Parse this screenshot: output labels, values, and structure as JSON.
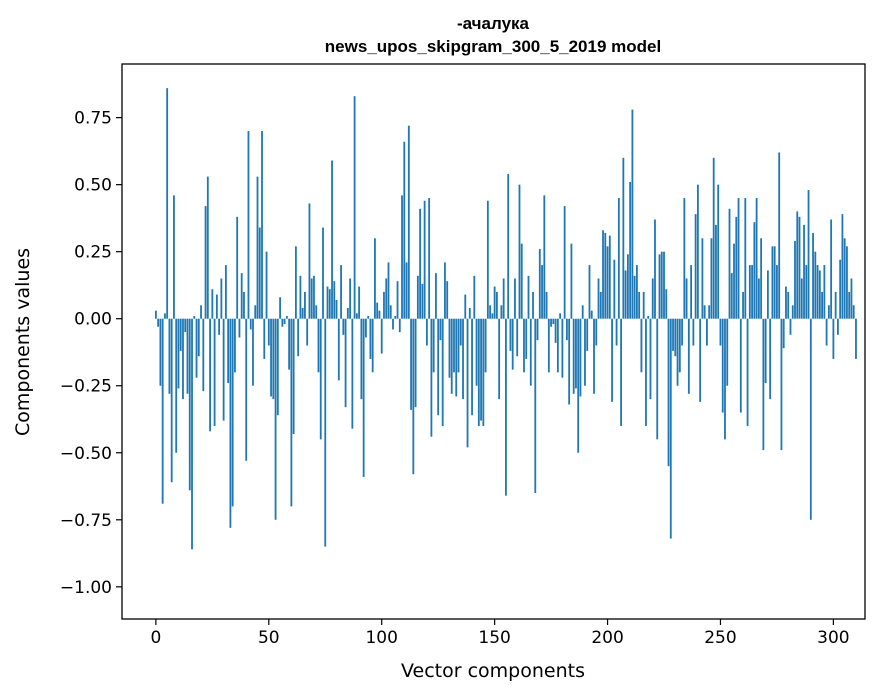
{
  "chart_data": {
    "type": "bar",
    "title": "-ачалука",
    "subtitle": "news_upos_skipgram_300_5_2019 model",
    "xlabel": "Vector components",
    "ylabel": "Components values",
    "xlim": [
      -15,
      314
    ],
    "ylim": [
      -1.12,
      0.95
    ],
    "xticks": [
      0,
      50,
      100,
      150,
      200,
      250,
      300
    ],
    "xtick_labels": [
      "0",
      "50",
      "100",
      "150",
      "200",
      "250",
      "300"
    ],
    "yticks": [
      0.75,
      0.5,
      0.25,
      0.0,
      -0.25,
      -0.5,
      -0.75,
      -1.0
    ],
    "ytick_labels": [
      "0.75",
      "0.50",
      "0.25",
      "0.00",
      "−0.25",
      "−0.50",
      "−0.75",
      "−1.00"
    ],
    "bar_color": "#1f77b4",
    "grid": false,
    "legend": "none",
    "values": [
      0.03,
      -0.03,
      -0.25,
      -0.69,
      0.02,
      0.86,
      -0.28,
      -0.61,
      0.46,
      -0.5,
      -0.26,
      -0.12,
      -0.3,
      -0.05,
      -0.28,
      -0.64,
      -0.86,
      0.01,
      -0.22,
      -0.14,
      0.05,
      -0.27,
      0.42,
      0.53,
      -0.42,
      0.11,
      -0.4,
      0.09,
      -0.06,
      0.15,
      -0.38,
      0.2,
      -0.24,
      -0.78,
      -0.7,
      -0.2,
      0.38,
      -0.07,
      0.17,
      0.1,
      -0.53,
      0.7,
      -0.04,
      -0.25,
      0.05,
      0.53,
      0.34,
      0.7,
      -0.15,
      0.25,
      -0.1,
      -0.29,
      -0.3,
      -0.75,
      -0.36,
      0.08,
      -0.03,
      -0.02,
      0.01,
      -0.19,
      -0.7,
      -0.43,
      0.27,
      -0.14,
      0.16,
      0.04,
      0.1,
      -0.1,
      0.43,
      0.15,
      0.16,
      0.05,
      -0.2,
      -0.45,
      0.34,
      -0.85,
      0.12,
      0.11,
      0.59,
      0.14,
      0.07,
      -0.23,
      0.2,
      -0.06,
      -0.33,
      0.04,
      0.15,
      -0.41,
      0.83,
      0.02,
      0.12,
      -0.3,
      -0.59,
      -0.07,
      0.01,
      -0.15,
      -0.2,
      0.3,
      0.06,
      0.03,
      -0.13,
      0.1,
      0.15,
      0.21,
      0.05,
      -0.04,
      0.01,
      0.14,
      -0.05,
      0.46,
      0.66,
      0.21,
      0.72,
      -0.34,
      -0.58,
      -0.33,
      0.16,
      0.41,
      0.13,
      0.44,
      -0.1,
      0.45,
      -0.44,
      -0.2,
      0.17,
      -0.36,
      -0.08,
      -0.4,
      0.21,
      0.14,
      -0.22,
      -0.28,
      -0.2,
      -0.29,
      -0.2,
      -0.1,
      -0.3,
      0.09,
      -0.48,
      0.04,
      -0.36,
      0.16,
      -0.25,
      -0.4,
      -0.38,
      -0.4,
      -0.2,
      0.44,
      0.05,
      0.02,
      0.12,
      0.1,
      -0.3,
      0.05,
      0.15,
      -0.66,
      0.54,
      -0.12,
      -0.19,
      0.15,
      -0.14,
      0.5,
      0.28,
      -0.2,
      -0.15,
      0.16,
      -0.25,
      0.1,
      -0.65,
      -0.08,
      0.26,
      0.2,
      0.46,
      0.1,
      -0.2,
      -0.03,
      -0.02,
      -0.09,
      -0.2,
      0.02,
      -0.22,
      0.42,
      -0.08,
      -0.32,
      0.28,
      -0.28,
      -0.26,
      -0.5,
      -0.29,
      0.05,
      -0.25,
      -0.12,
      0.2,
      0.03,
      -0.28,
      -0.1,
      0.15,
      0.1,
      0.33,
      0.32,
      0.27,
      0.31,
      -0.31,
      0.22,
      -0.1,
      0.45,
      -0.4,
      0.6,
      0.18,
      0.24,
      0.51,
      0.78,
      0.16,
      0.2,
      0.1,
      -0.2,
      0.1,
      -0.4,
      0.01,
      -0.3,
      0.15,
      0.37,
      -0.45,
      0.24,
      0.25,
      0.25,
      0.11,
      -0.55,
      -0.82,
      -0.12,
      -0.14,
      -0.25,
      -0.2,
      -0.1,
      0.45,
      0.15,
      -0.28,
      0.2,
      -0.1,
      0.39,
      0.5,
      -0.31,
      0.3,
      0.05,
      -0.1,
      0.05,
      0.3,
      0.6,
      0.35,
      0.5,
      -0.1,
      -0.35,
      -0.45,
      -0.25,
      0.41,
      0.17,
      0.28,
      0.38,
      0.45,
      -0.35,
      0.1,
      0.45,
      -0.4,
      0.2,
      0.2,
      0.36,
      0.45,
      0.15,
      0.3,
      -0.49,
      -0.24,
      0.18,
      -0.3,
      0.27,
      0.27,
      0.2,
      0.62,
      -0.49,
      -0.11,
      0.12,
      0.1,
      -0.06,
      0.05,
      0.29,
      0.4,
      0.38,
      0.15,
      0.35,
      0.2,
      0.48,
      -0.75,
      0.32,
      0.25,
      0.2,
      0.18,
      0.1,
      0.2,
      -0.1,
      0.05,
      0.37,
      -0.15,
      0.1,
      -0.06,
      0.22,
      0.39,
      0.3,
      0.27,
      0.1,
      0.15,
      0.05,
      -0.15
    ]
  }
}
